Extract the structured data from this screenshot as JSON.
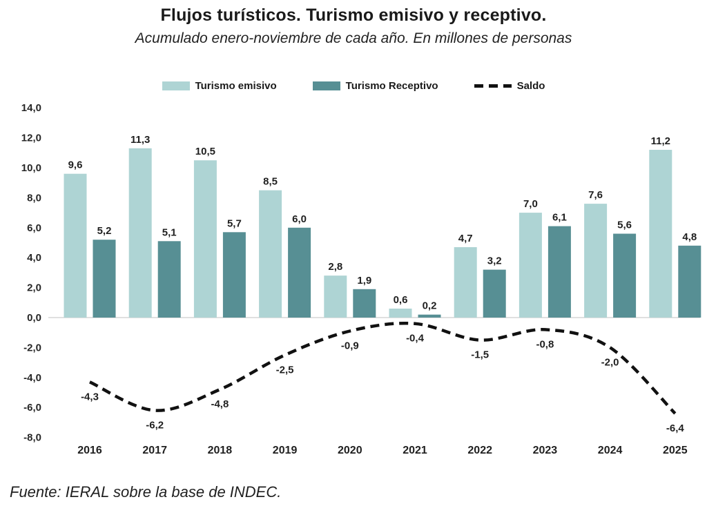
{
  "header": {
    "title": "Flujos turísticos. Turismo emisivo y receptivo.",
    "subtitle": "Acumulado enero-noviembre de cada año. En millones de personas"
  },
  "source": "Fuente: IERAL sobre la base de INDEC.",
  "chart_data": {
    "type": "bar",
    "subtype": "grouped bars with dashed line overlay",
    "categories": [
      "2016",
      "2017",
      "2018",
      "2019",
      "2020",
      "2021",
      "2022",
      "2023",
      "2024",
      "2025"
    ],
    "series": [
      {
        "name": "Turismo emisivo",
        "type": "bar",
        "color": "#aed4d4",
        "values": [
          9.6,
          11.3,
          10.5,
          8.5,
          2.8,
          0.6,
          4.7,
          7.0,
          7.6,
          11.2
        ],
        "labels": [
          "9,6",
          "11,3",
          "10,5",
          "8,5",
          "2,8",
          "0,6",
          "4,7",
          "7,0",
          "7,6",
          "11,2"
        ]
      },
      {
        "name": "Turismo Receptivo",
        "type": "bar",
        "color": "#578f94",
        "values": [
          5.2,
          5.1,
          5.7,
          6.0,
          1.9,
          0.2,
          3.2,
          6.1,
          5.6,
          4.8
        ],
        "labels": [
          "5,2",
          "5,1",
          "5,7",
          "6,0",
          "1,9",
          "0,2",
          "3,2",
          "6,1",
          "5,6",
          "4,8"
        ]
      },
      {
        "name": "Saldo",
        "type": "line",
        "style": "dashed",
        "color": "#111111",
        "values": [
          -4.3,
          -6.2,
          -4.8,
          -2.5,
          -0.9,
          -0.4,
          -1.5,
          -0.8,
          -2.0,
          -6.4
        ],
        "labels": [
          "-4,3",
          "-6,2",
          "-4,8",
          "-2,5",
          "-0,9",
          "-0,4",
          "-1,5",
          "-0,8",
          "-2,0",
          "-6,4"
        ]
      }
    ],
    "yticks": {
      "values": [
        14,
        12,
        10,
        8,
        6,
        4,
        2,
        0,
        -2,
        -4,
        -6,
        -8
      ],
      "labels": [
        "14,0",
        "12,0",
        "10,0",
        "8,0",
        "6,0",
        "4,0",
        "2,0",
        "0,0",
        "-2,0",
        "-4,0",
        "-6,0",
        "-8,0"
      ]
    },
    "ylim": [
      -8,
      14
    ],
    "xlabel": "",
    "ylabel": "",
    "grid": false,
    "legend_position": "top",
    "decimal_separator": ","
  }
}
